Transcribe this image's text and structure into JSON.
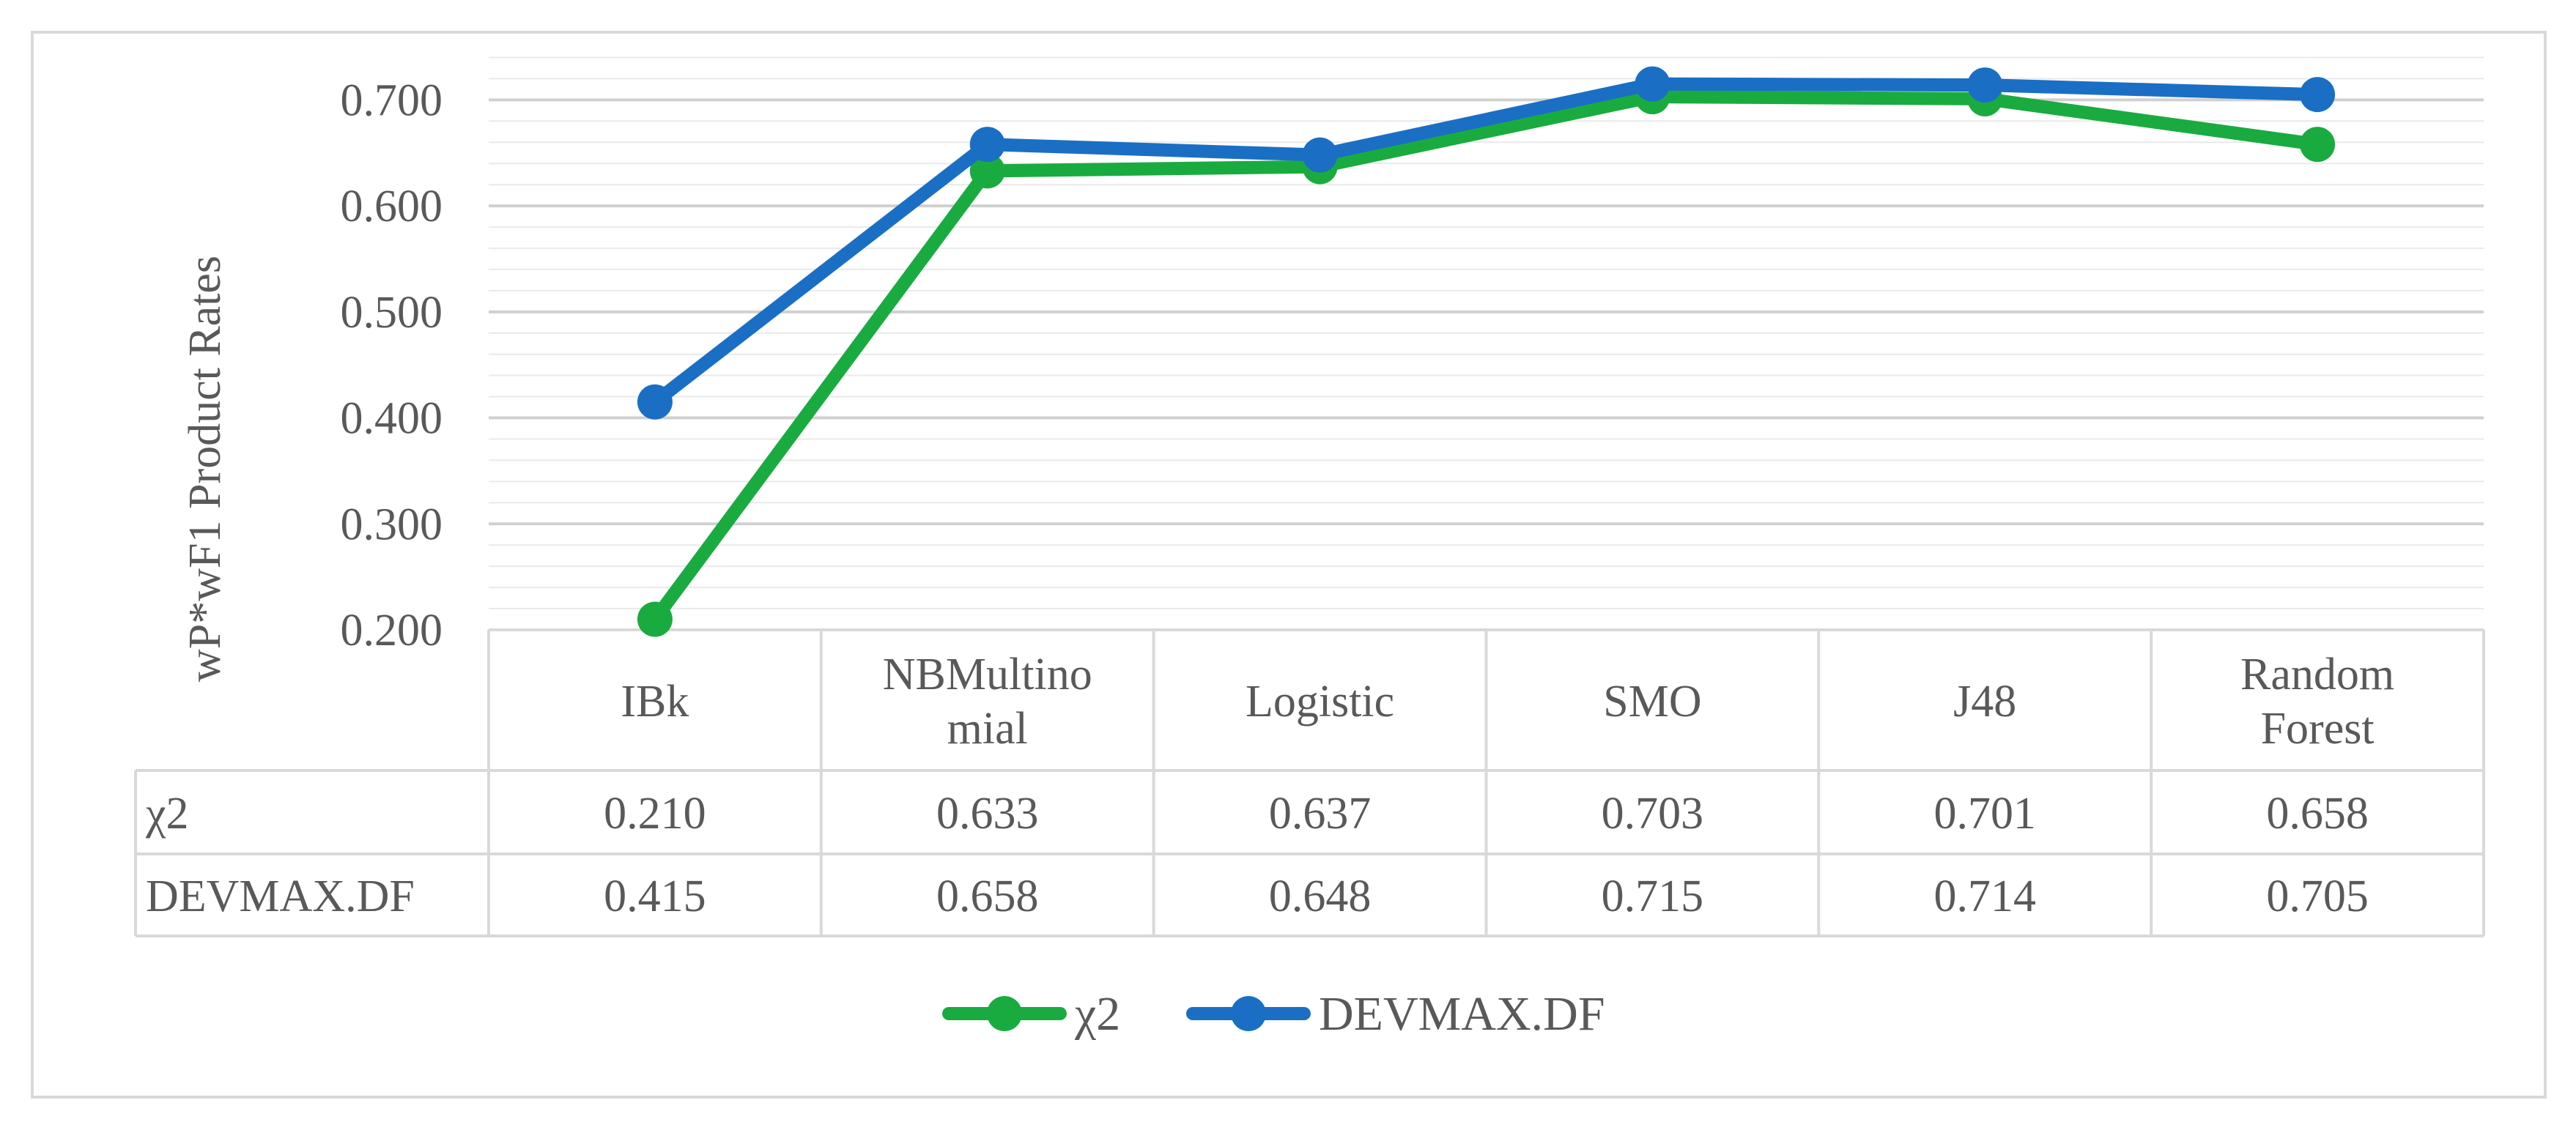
{
  "chart_data": {
    "type": "line",
    "ylabel": "wP*wF1 Product Rates",
    "ylim": [
      0.2,
      0.75
    ],
    "yticks": [
      "0.200",
      "0.300",
      "0.400",
      "0.500",
      "0.600",
      "0.700"
    ],
    "categories": [
      [
        "IBk"
      ],
      [
        "NBMultino",
        "mial"
      ],
      [
        "Logistic"
      ],
      [
        "SMO"
      ],
      [
        "J48"
      ],
      [
        "Random",
        "Forest"
      ]
    ],
    "series": [
      {
        "name": "χ2",
        "color": "#1aab40",
        "values": [
          0.21,
          0.633,
          0.637,
          0.703,
          0.701,
          0.658
        ],
        "labels": [
          "0.210",
          "0.633",
          "0.637",
          "0.703",
          "0.701",
          "0.658"
        ]
      },
      {
        "name": "DEVMAX.DF",
        "color": "#1a6fc4",
        "values": [
          0.415,
          0.658,
          0.648,
          0.715,
          0.714,
          0.705
        ],
        "labels": [
          "0.415",
          "0.658",
          "0.648",
          "0.715",
          "0.714",
          "0.705"
        ]
      }
    ],
    "grid": true,
    "legend": "bottom"
  }
}
